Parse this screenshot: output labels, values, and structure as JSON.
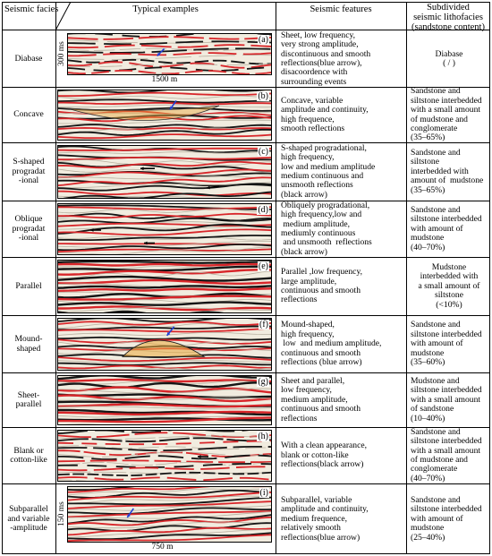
{
  "header": {
    "facies": "Seismic facies",
    "examples": "Typical examples",
    "features": "Seismic features",
    "litho_line1": "Subdivided",
    "litho_line2": "seismic lithofacies",
    "litho_line3": "(sandstone  content)"
  },
  "rows": [
    {
      "facies_lines": [
        "Diabase"
      ],
      "letter": "(a)",
      "features_lines": [
        "Sheet, low frequency,",
        "very strong amplitude,",
        "discontinuous and smooth",
        "reflections(blue arrow),",
        "disacoordence with",
        "surrounding events"
      ],
      "litho_lines": [
        "Diabase",
        "( / )"
      ],
      "scale_v": "300 ms",
      "scale_h": "1500 m"
    },
    {
      "facies_lines": [
        "Concave"
      ],
      "letter": "(b)",
      "features_lines": [
        "Concave, variable",
        "amplitude and continuity,",
        "high frequence,",
        "smooth reflections"
      ],
      "litho_lines": [
        "Sandstone and",
        "siltstone interbedded",
        "with a small amount",
        "of mudstone and",
        "conglomerate",
        "(35–65%)"
      ]
    },
    {
      "facies_lines": [
        "S-shaped",
        "progradat",
        "-ional"
      ],
      "letter": "(c)",
      "features_lines": [
        "S-shaped progradational,",
        "high frequency,",
        "low and medium amplitude",
        "medium continuous and",
        "unsmooth reflections",
        "(black arrow)"
      ],
      "litho_lines": [
        "Sandstone and",
        "siltstone",
        "interbedded with",
        "amount of  mudstone",
        "(35–65%)"
      ]
    },
    {
      "facies_lines": [
        "Oblique",
        "progradat",
        "-ional"
      ],
      "letter": "(d)",
      "features_lines": [
        "Obliquely progradational,",
        "high frequency,low and",
        " medium amplitude,",
        "mediumly continuous",
        " and unsmooth  reflections",
        "(black arrow)"
      ],
      "litho_lines": [
        "Sandstone and",
        "siltstone interbedded",
        "with amount of",
        "mudstone",
        "(40–70%)"
      ]
    },
    {
      "facies_lines": [
        "Parallel"
      ],
      "letter": "(e)",
      "features_lines": [
        "Parallel ,low frequency,",
        "large amplitude,",
        "continuous and smooth",
        "reflections"
      ],
      "litho_lines": [
        "Mudstone",
        "interbedded with",
        "a small amount of",
        "siltstone",
        "(<10%)"
      ]
    },
    {
      "facies_lines": [
        "Mound-",
        "shaped"
      ],
      "letter": "(f)",
      "features_lines": [
        "Mound-shaped,",
        "high frequency,",
        " low  and medium amplitude,",
        "continuous and smooth",
        "reflections (blue arrow)"
      ],
      "litho_lines": [
        "Sandstone and",
        "siltstone interbedded",
        "with amount of",
        "mudstone",
        "(35–60%)"
      ]
    },
    {
      "facies_lines": [
        "Sheet-",
        "parallel"
      ],
      "letter": "(g)",
      "features_lines": [
        "Sheet and parallel,",
        "low frequency,",
        "medium amplitude,",
        "continuous and smooth",
        "reflections"
      ],
      "litho_lines": [
        "Mudstone and",
        "siltstone interbedded",
        "with a small amount",
        "of sandstone",
        "(10–40%)"
      ]
    },
    {
      "facies_lines": [
        "Blank or",
        "cotton-like"
      ],
      "letter": "(h)",
      "features_lines": [
        "With a clean appearance,",
        "blank or cotton-like",
        "reflections(black arrow)"
      ],
      "litho_lines": [
        "Sandstone and",
        "siltstone interbedded",
        "with a small amount",
        "of mudstone and",
        "conglomerate",
        "(40–70%)"
      ]
    },
    {
      "facies_lines": [
        "Subparallel",
        "and variable",
        "-amplitude"
      ],
      "letter": "(i)",
      "features_lines": [
        "Subparallel, variable",
        "amplitude and continuity,",
        "medium frequence,",
        "relatively smooth",
        "reflections(blue arrow)"
      ],
      "litho_lines": [
        "Sandstone and",
        "siltstone interbedded",
        "with amount of",
        "mudstone",
        "(25–40%)"
      ],
      "scale_v": "150 ms",
      "scale_h": "750 m"
    }
  ],
  "colors": {
    "seismic_red": "#d8262a",
    "seismic_black": "#151515",
    "seismic_bg": "#f1ecdf",
    "arrow_blue": "#1f3fd6",
    "outline_orange": "#e9a93d"
  }
}
